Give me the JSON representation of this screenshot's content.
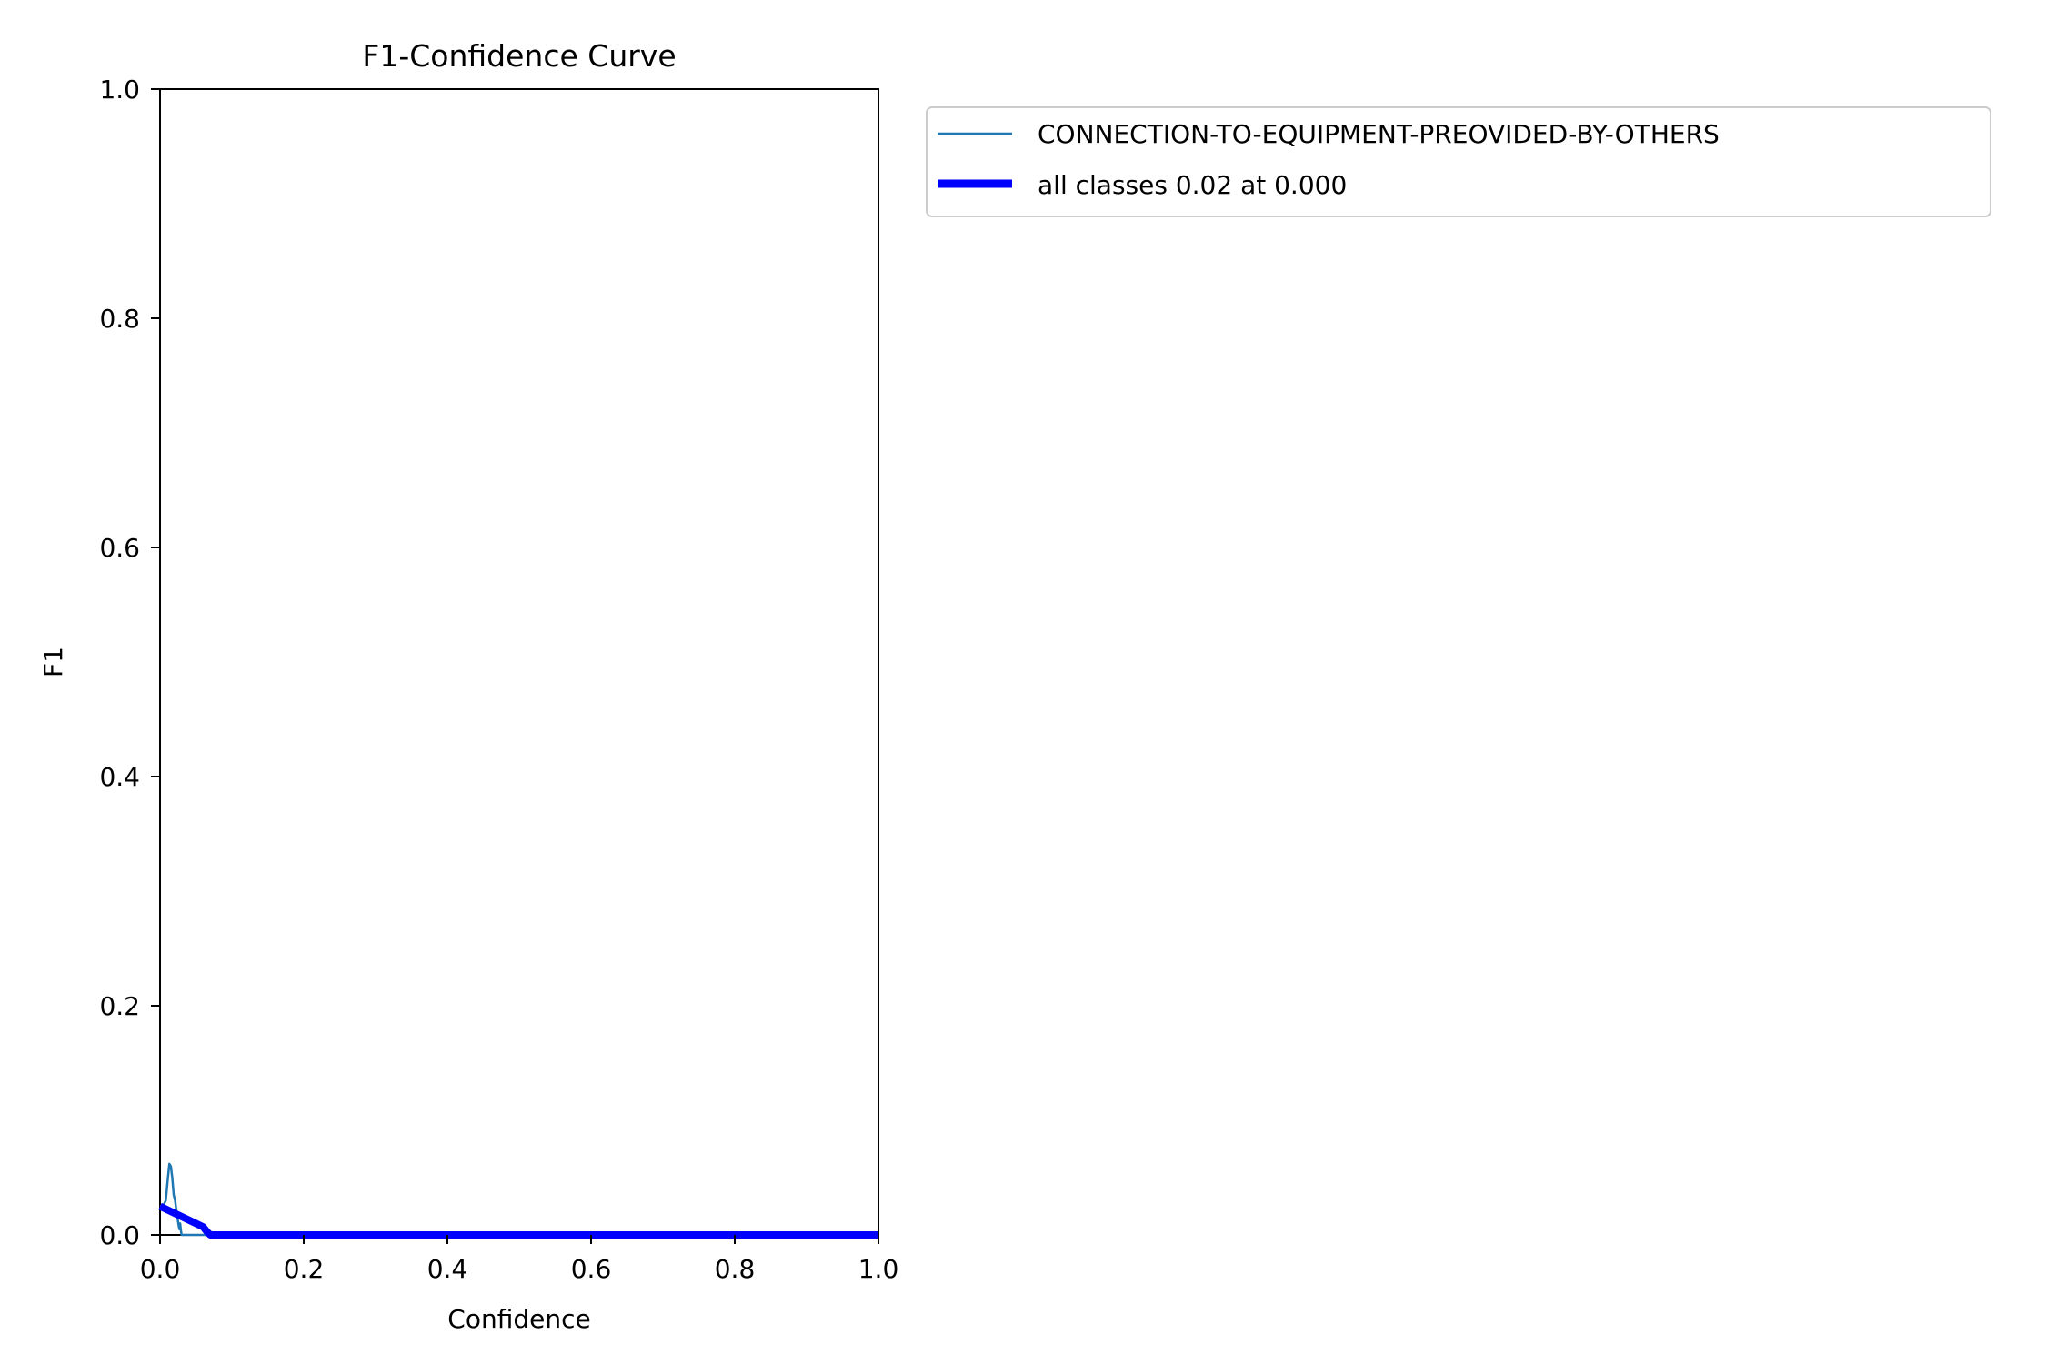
{
  "chart_data": {
    "type": "line",
    "title": "F1-Confidence Curve",
    "xlabel": "Confidence",
    "ylabel": "F1",
    "xlim": [
      0,
      1
    ],
    "ylim": [
      0,
      1
    ],
    "xticks": [
      "0.0",
      "0.2",
      "0.4",
      "0.6",
      "0.8",
      "1.0"
    ],
    "yticks": [
      "0.0",
      "0.2",
      "0.4",
      "0.6",
      "0.8",
      "1.0"
    ],
    "grid": false,
    "legend_position": "outside-upper-right",
    "series": [
      {
        "name": "CONNECTION-TO-EQUIPMENT-PREOVIDED-BY-OTHERS",
        "color": "#1f77b4",
        "style": "thin",
        "x": [
          0.0,
          0.004,
          0.008,
          0.011,
          0.013,
          0.015,
          0.017,
          0.019,
          0.021,
          0.023,
          0.025,
          0.026,
          0.027,
          0.028,
          0.029,
          0.03,
          0.032,
          0.04,
          0.06,
          0.1,
          0.2,
          0.4,
          0.6,
          0.8,
          1.0
        ],
        "y": [
          0.025,
          0.025,
          0.03,
          0.05,
          0.062,
          0.06,
          0.05,
          0.035,
          0.03,
          0.02,
          0.012,
          0.008,
          0.005,
          0.01,
          0.004,
          0.0,
          0.0,
          0.0,
          0.0,
          0.0,
          0.0,
          0.0,
          0.0,
          0.0,
          0.0
        ]
      },
      {
        "name": "all classes 0.02 at 0.000",
        "color": "#0000ff",
        "style": "thick",
        "x": [
          0.0,
          0.02,
          0.04,
          0.06,
          0.065,
          0.07,
          0.1,
          0.2,
          0.4,
          0.6,
          0.8,
          1.0
        ],
        "y": [
          0.025,
          0.019,
          0.013,
          0.007,
          0.003,
          0.0,
          0.0,
          0.0,
          0.0,
          0.0,
          0.0,
          0.0
        ]
      }
    ]
  }
}
